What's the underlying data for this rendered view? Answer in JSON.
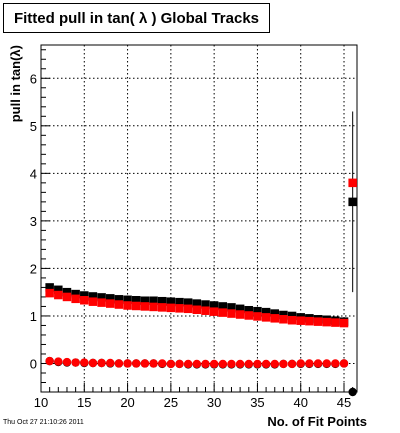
{
  "timestamp": "Thu Oct 27 21:10:26 2011",
  "colors": {
    "series_a": "#000000",
    "series_b": "#ff0000",
    "grid": "#000000",
    "frame": "#000000"
  },
  "chart_data": {
    "type": "scatter",
    "title": "Fitted pull in tan( λ )  Global Tracks",
    "xlabel": "No. of Fit Points",
    "ylabel": "pull in tan(λ)",
    "xlim": [
      10,
      46.5
    ],
    "ylim": [
      -0.6,
      6.7
    ],
    "xticks": [
      10,
      15,
      20,
      25,
      30,
      35,
      40,
      45
    ],
    "yticks": [
      0,
      1,
      2,
      3,
      4,
      5,
      6
    ],
    "grid": true,
    "x": [
      11,
      12,
      13,
      14,
      15,
      16,
      17,
      18,
      19,
      20,
      21,
      22,
      23,
      24,
      25,
      26,
      27,
      28,
      29,
      30,
      31,
      32,
      33,
      34,
      35,
      36,
      37,
      38,
      39,
      40,
      41,
      42,
      43,
      44,
      45
    ],
    "series": [
      {
        "marker": "square",
        "color": "#000000",
        "mean_values": [
          1.6,
          1.55,
          1.5,
          1.46,
          1.43,
          1.41,
          1.39,
          1.37,
          1.35,
          1.34,
          1.33,
          1.32,
          1.32,
          1.31,
          1.3,
          1.29,
          1.28,
          1.26,
          1.24,
          1.22,
          1.2,
          1.18,
          1.15,
          1.12,
          1.1,
          1.08,
          1.05,
          1.02,
          1.0,
          0.97,
          0.95,
          0.93,
          0.92,
          0.9,
          0.88
        ],
        "sigma_values": [
          0.05,
          0.03,
          0.02,
          0.02,
          0.01,
          0.01,
          0.01,
          0.0,
          0.0,
          0.0,
          0.0,
          0.0,
          0.0,
          -0.01,
          -0.01,
          -0.01,
          -0.02,
          -0.02,
          -0.02,
          -0.02,
          -0.02,
          -0.02,
          -0.02,
          -0.02,
          -0.02,
          -0.02,
          -0.02,
          -0.01,
          -0.01,
          -0.01,
          -0.01,
          -0.01,
          -0.01,
          -0.01,
          0.0
        ],
        "overflow": {
          "x": 46,
          "mean": 3.4,
          "mean_err": 1.9,
          "sigma": -0.6
        }
      },
      {
        "marker": "square",
        "color": "#ff0000",
        "mean_values": [
          1.48,
          1.44,
          1.4,
          1.36,
          1.33,
          1.3,
          1.28,
          1.26,
          1.24,
          1.22,
          1.21,
          1.2,
          1.19,
          1.18,
          1.17,
          1.16,
          1.15,
          1.13,
          1.11,
          1.09,
          1.07,
          1.05,
          1.03,
          1.01,
          0.99,
          0.97,
          0.95,
          0.93,
          0.91,
          0.9,
          0.89,
          0.88,
          0.87,
          0.86,
          0.85
        ],
        "sigma_values": [
          0.05,
          0.04,
          0.03,
          0.02,
          0.02,
          0.01,
          0.01,
          0.01,
          0.0,
          0.0,
          0.0,
          0.0,
          0.0,
          0.0,
          -0.01,
          -0.01,
          -0.01,
          -0.01,
          -0.01,
          -0.01,
          -0.01,
          -0.01,
          -0.01,
          -0.01,
          -0.01,
          -0.01,
          -0.01,
          -0.01,
          -0.01,
          0.0,
          0.0,
          0.0,
          0.0,
          0.0,
          0.0
        ],
        "overflow": {
          "x": 46,
          "mean": 3.8
        }
      }
    ]
  }
}
